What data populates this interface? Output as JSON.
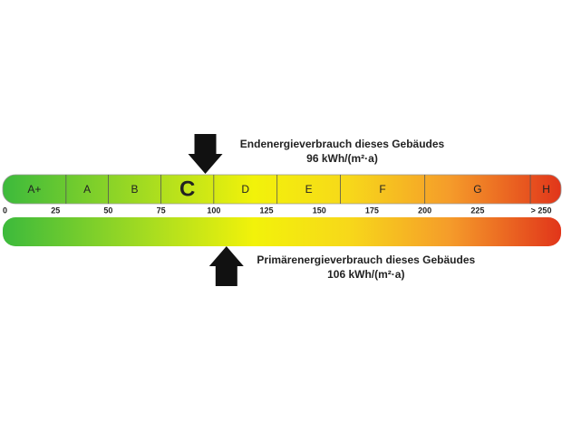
{
  "chart_data": {
    "type": "energy-scale",
    "classes": [
      "A+",
      "A",
      "B",
      "C",
      "D",
      "E",
      "F",
      "G",
      "H"
    ],
    "class_bounds": [
      30,
      50,
      75,
      100,
      130,
      160,
      200,
      250
    ],
    "highlight_index": 3,
    "xlim": [
      0,
      265
    ],
    "xticks": [
      0,
      25,
      50,
      75,
      100,
      125,
      150,
      175,
      200,
      225,
      {
        "value": 250,
        "label": "> 250"
      }
    ],
    "markers": [
      {
        "name": "Endenergieverbrauch dieses Gebäudes",
        "value": 96,
        "value_label": "96 kWh/(m²·a)",
        "position": "top"
      },
      {
        "name": "Primärenergieverbrauch dieses Gebäudes",
        "value": 106,
        "value_label": "106 kWh/(m²·a)",
        "position": "bottom"
      }
    ]
  }
}
